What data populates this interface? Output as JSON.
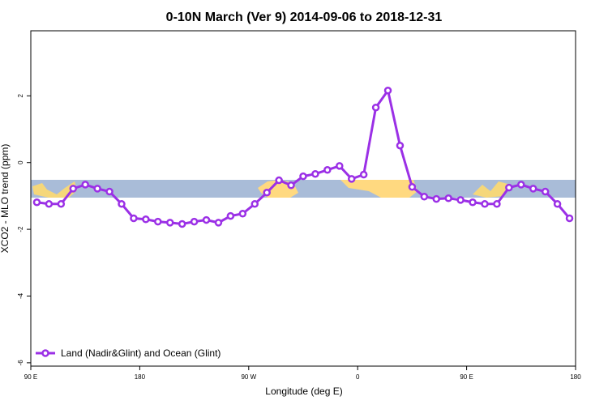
{
  "chart_data": {
    "type": "line",
    "title": "0-10N March (Ver 9)   2014-09-06 to 2018-12-31",
    "x_label": "Longitude (deg E)",
    "y_label": "XCO2 - MLO trend (ppm)",
    "x": [
      95,
      105,
      115,
      125,
      135,
      145,
      155,
      165,
      175,
      185,
      195,
      205,
      215,
      225,
      235,
      245,
      255,
      265,
      275,
      285,
      295,
      305,
      315,
      325,
      335,
      345,
      355,
      365,
      375,
      385,
      395,
      405,
      415,
      425,
      435,
      445,
      455,
      465,
      475,
      485,
      495,
      505,
      515,
      525,
      535
    ],
    "series": [
      {
        "name": "Land (Nadir&Glint) and Ocean (Glint)",
        "color": "#9b30e6",
        "values": [
          -1.19,
          -1.24,
          -1.24,
          -0.78,
          -0.66,
          -0.78,
          -0.87,
          -1.24,
          -1.67,
          -1.7,
          -1.77,
          -1.8,
          -1.84,
          -1.77,
          -1.72,
          -1.8,
          -1.6,
          -1.53,
          -1.24,
          -0.9,
          -0.53,
          -0.68,
          -0.41,
          -0.34,
          -0.22,
          -0.1,
          -0.49,
          -0.36,
          1.65,
          2.16,
          0.51,
          -0.73,
          -1.02,
          -1.09,
          -1.07,
          -1.12,
          -1.19,
          -1.24,
          -1.24,
          -0.75,
          -0.66,
          -0.78,
          -0.87,
          -1.24,
          -1.67
        ]
      }
    ],
    "xlim": [
      90,
      540
    ],
    "xticks": [
      {
        "value": 90,
        "label": "90 E"
      },
      180,
      {
        "value": 270,
        "label": "90 W"
      },
      {
        "value": 360,
        "label": "0"
      },
      {
        "value": 450,
        "label": "90 E"
      },
      {
        "value": 540,
        "label": "180"
      }
    ],
    "ylim": [
      -6.1,
      3.95
    ],
    "yticks": [
      -6,
      -4,
      -2,
      0,
      2
    ],
    "legend": "bottom-left"
  }
}
